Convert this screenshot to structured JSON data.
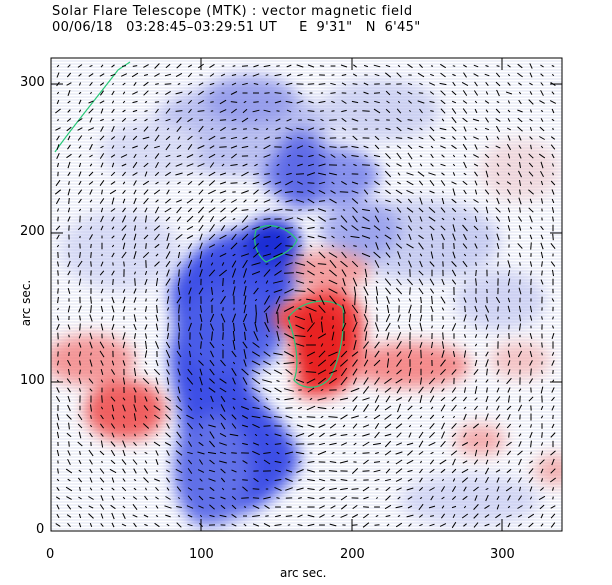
{
  "header": {
    "title": "Solar Flare Telescope (MTK) : vector magnetic field",
    "date": "00/06/18",
    "time_range": "03:28:45–03:29:51 UT",
    "lon": "E  9'31\"",
    "lat": "N  6'45\""
  },
  "axes": {
    "xlabel": "arc sec.",
    "ylabel": "arc sec.",
    "xlim": [
      0,
      340
    ],
    "ylim": [
      0,
      315
    ],
    "xticks": [
      0,
      100,
      200,
      300
    ],
    "yticks": [
      0,
      100,
      200,
      300
    ]
  },
  "colors": {
    "positive": "#f04545",
    "negative": "#2a3ce0",
    "contour": "#28c878",
    "background": "#ffffff"
  }
}
